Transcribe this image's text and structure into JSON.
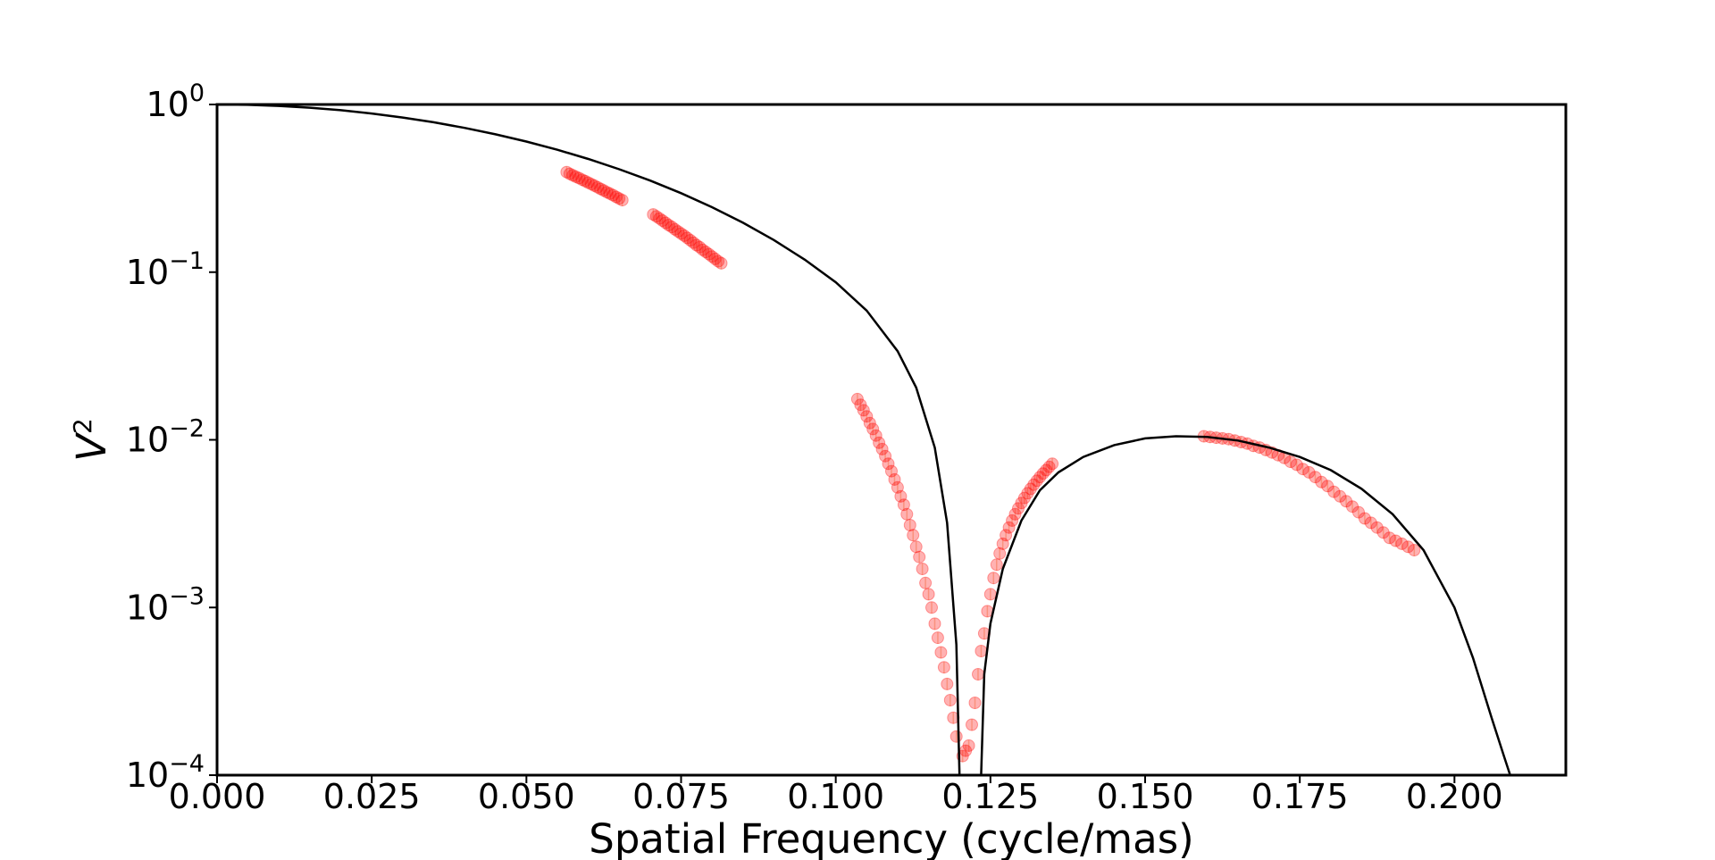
{
  "chart_data": {
    "type": "scatter",
    "xlabel": "Spatial Frequency (cycle/mas)",
    "ylabel": "V",
    "ylabel_superscript": "2",
    "xlim": [
      0.0,
      0.218
    ],
    "ylim": [
      0.0001,
      1
    ],
    "yscale": "log",
    "grid": false,
    "legend": "none",
    "x_ticks": [
      {
        "value": 0.0,
        "label": "0.000"
      },
      {
        "value": 0.025,
        "label": "0.025"
      },
      {
        "value": 0.05,
        "label": "0.050"
      },
      {
        "value": 0.075,
        "label": "0.075"
      },
      {
        "value": 0.1,
        "label": "0.100"
      },
      {
        "value": 0.125,
        "label": "0.125"
      },
      {
        "value": 0.15,
        "label": "0.150"
      },
      {
        "value": 0.175,
        "label": "0.175"
      },
      {
        "value": 0.2,
        "label": "0.200"
      }
    ],
    "y_ticks": [
      {
        "value": 1,
        "base": "10",
        "exp": "0"
      },
      {
        "value": 0.1,
        "base": "10",
        "exp": "−1"
      },
      {
        "value": 0.01,
        "base": "10",
        "exp": "−2"
      },
      {
        "value": 0.001,
        "base": "10",
        "exp": "−3"
      },
      {
        "value": 0.0001,
        "base": "10",
        "exp": "−4"
      }
    ],
    "colors": {
      "model_line": "#000000",
      "points": "#ff0000",
      "error_bars": "#f4b183"
    },
    "series": [
      {
        "kind": "line",
        "x": [
          0.0,
          0.005,
          0.01,
          0.015,
          0.02,
          0.025,
          0.03,
          0.035,
          0.04,
          0.045,
          0.05,
          0.055,
          0.06,
          0.065,
          0.07,
          0.075,
          0.08,
          0.085,
          0.09,
          0.095,
          0.1,
          0.105,
          0.11,
          0.113,
          0.116,
          0.118,
          0.1195,
          0.12,
          0.1235,
          0.124,
          0.125,
          0.127,
          0.13,
          0.133,
          0.136,
          0.14,
          0.145,
          0.15,
          0.155,
          0.16,
          0.165,
          0.17,
          0.175,
          0.18,
          0.185,
          0.19,
          0.195,
          0.2,
          0.203,
          0.206,
          0.208,
          0.209
        ],
        "y": [
          1.0,
          0.9951,
          0.9807,
          0.9569,
          0.9243,
          0.8839,
          0.8364,
          0.7833,
          0.7254,
          0.6643,
          0.601,
          0.5369,
          0.4732,
          0.4112,
          0.3517,
          0.2958,
          0.2441,
          0.1972,
          0.1554,
          0.1186,
          0.087,
          0.059,
          0.0338,
          0.0205,
          0.009,
          0.0032,
          0.0006,
          0.0001,
          0.0001,
          0.0004,
          0.0008,
          0.0017,
          0.0033,
          0.005,
          0.0064,
          0.0079,
          0.0093,
          0.0102,
          0.0105,
          0.0104,
          0.0099,
          0.009,
          0.0079,
          0.0066,
          0.0051,
          0.0036,
          0.0022,
          0.001,
          0.0005,
          0.00022,
          0.00013,
          0.0001
        ]
      },
      {
        "kind": "points",
        "x": [
          0.0565,
          0.057,
          0.0575,
          0.058,
          0.0585,
          0.059,
          0.0595,
          0.06,
          0.0605,
          0.061,
          0.0615,
          0.062,
          0.0625,
          0.063,
          0.0635,
          0.064,
          0.0645,
          0.065,
          0.0655,
          0.0705,
          0.071,
          0.0715,
          0.072,
          0.0725,
          0.073,
          0.0735,
          0.074,
          0.0745,
          0.075,
          0.0755,
          0.076,
          0.0765,
          0.077,
          0.0775,
          0.078,
          0.0785,
          0.079,
          0.0795,
          0.08,
          0.0805,
          0.081,
          0.0815,
          0.1035,
          0.104,
          0.1045,
          0.105,
          0.1055,
          0.106,
          0.1065,
          0.107,
          0.1075,
          0.108,
          0.1085,
          0.109,
          0.1095,
          0.11,
          0.1105,
          0.111,
          0.1115,
          0.112,
          0.1125,
          0.113,
          0.1135,
          0.114,
          0.1145,
          0.115,
          0.1155,
          0.116,
          0.1165,
          0.117,
          0.1175,
          0.118,
          0.1185,
          0.119,
          0.1195,
          0.1205,
          0.121,
          0.1215,
          0.122,
          0.1225,
          0.123,
          0.1235,
          0.124,
          0.1245,
          0.125,
          0.1255,
          0.126,
          0.1265,
          0.127,
          0.1275,
          0.128,
          0.1285,
          0.129,
          0.1295,
          0.13,
          0.1305,
          0.131,
          0.1315,
          0.132,
          0.1325,
          0.133,
          0.1335,
          0.134,
          0.1345,
          0.135,
          0.1595,
          0.1605,
          0.1615,
          0.1625,
          0.1635,
          0.1645,
          0.1655,
          0.1665,
          0.1675,
          0.1685,
          0.1695,
          0.1705,
          0.1715,
          0.1725,
          0.1735,
          0.1745,
          0.1755,
          0.1765,
          0.1775,
          0.1785,
          0.1795,
          0.1805,
          0.1815,
          0.1825,
          0.1835,
          0.1845,
          0.1855,
          0.1865,
          0.1875,
          0.1885,
          0.1895,
          0.1905,
          0.1915,
          0.1925,
          0.1935
        ],
        "y": [
          0.395,
          0.386,
          0.378,
          0.371,
          0.364,
          0.356,
          0.349,
          0.342,
          0.335,
          0.328,
          0.321,
          0.314,
          0.307,
          0.3,
          0.294,
          0.288,
          0.281,
          0.275,
          0.269,
          0.221,
          0.215,
          0.209,
          0.203,
          0.197,
          0.191,
          0.186,
          0.18,
          0.175,
          0.17,
          0.165,
          0.16,
          0.155,
          0.15,
          0.145,
          0.141,
          0.136,
          0.132,
          0.128,
          0.124,
          0.12,
          0.116,
          0.113,
          0.0175,
          0.0162,
          0.015,
          0.0138,
          0.0126,
          0.0116,
          0.0106,
          0.0096,
          0.0088,
          0.008,
          0.0072,
          0.0065,
          0.0058,
          0.0052,
          0.0046,
          0.0041,
          0.0036,
          0.0031,
          0.0027,
          0.0023,
          0.002,
          0.0017,
          0.0014,
          0.0012,
          0.001,
          0.0008,
          0.00066,
          0.00054,
          0.00044,
          0.00035,
          0.00028,
          0.00022,
          0.00017,
          0.00013,
          0.00014,
          0.00015,
          0.0002,
          0.00027,
          0.0004,
          0.00055,
          0.0007,
          0.00095,
          0.0012,
          0.0015,
          0.0018,
          0.0021,
          0.0024,
          0.0027,
          0.003,
          0.0033,
          0.0036,
          0.0039,
          0.0042,
          0.0045,
          0.0048,
          0.0051,
          0.0054,
          0.0057,
          0.006,
          0.0063,
          0.0066,
          0.0069,
          0.0072,
          0.0105,
          0.0104,
          0.0103,
          0.0102,
          0.0101,
          0.0099,
          0.0097,
          0.0095,
          0.0092,
          0.009,
          0.0087,
          0.0084,
          0.0081,
          0.0078,
          0.0074,
          0.0071,
          0.0067,
          0.0064,
          0.006,
          0.0056,
          0.0053,
          0.0049,
          0.0046,
          0.0043,
          0.004,
          0.0037,
          0.0034,
          0.0032,
          0.003,
          0.0028,
          0.0026,
          0.0025,
          0.0024,
          0.0023,
          0.0022
        ]
      }
    ]
  }
}
